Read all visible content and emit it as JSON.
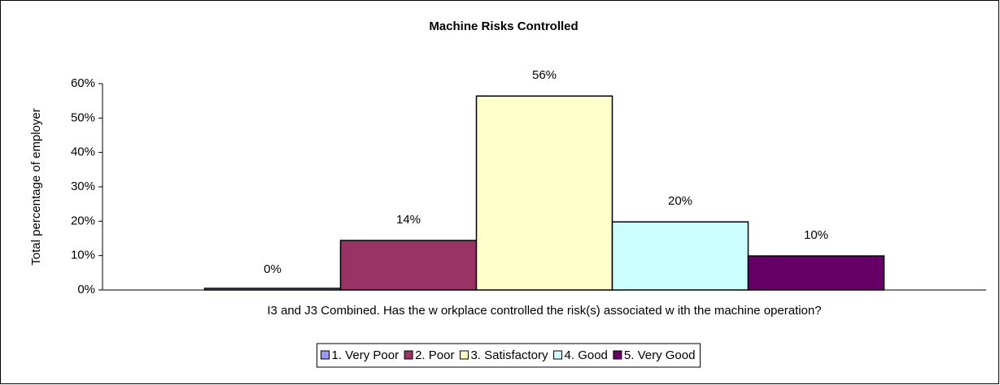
{
  "chart_data": {
    "type": "bar",
    "title": "Machine Risks Controlled",
    "y_label": "Total percentage of employer",
    "x_label": "I3 and J3 Combined. Has the w orkplace controlled the risk(s) associated w ith the machine operation?",
    "series": [
      {
        "name": "1. Very Poor",
        "color": "#9999ff",
        "values": [
          0
        ],
        "value_labels": [
          "0%"
        ]
      },
      {
        "name": "2. Poor",
        "color": "#993366",
        "values": [
          14.4
        ],
        "value_labels": [
          "14%"
        ]
      },
      {
        "name": "3. Satisfactory",
        "color": "#ffffcc",
        "values": [
          56.4
        ],
        "value_labels": [
          "56%"
        ]
      },
      {
        "name": "4. Good",
        "color": "#ccffff",
        "values": [
          19.8
        ],
        "value_labels": [
          "20%"
        ]
      },
      {
        "name": "5. Very Good",
        "color": "#660066",
        "values": [
          9.9
        ],
        "value_labels": [
          "10%"
        ]
      }
    ],
    "ylim": [
      0,
      60
    ],
    "yticks": [
      {
        "value": 0,
        "label": "0%"
      },
      {
        "value": 10,
        "label": "10%"
      },
      {
        "value": 20,
        "label": "20%"
      },
      {
        "value": 30,
        "label": "30%"
      },
      {
        "value": 40,
        "label": "40%"
      },
      {
        "value": 50,
        "label": "50%"
      },
      {
        "value": 60,
        "label": "60%"
      }
    ],
    "legend": "bottom"
  }
}
